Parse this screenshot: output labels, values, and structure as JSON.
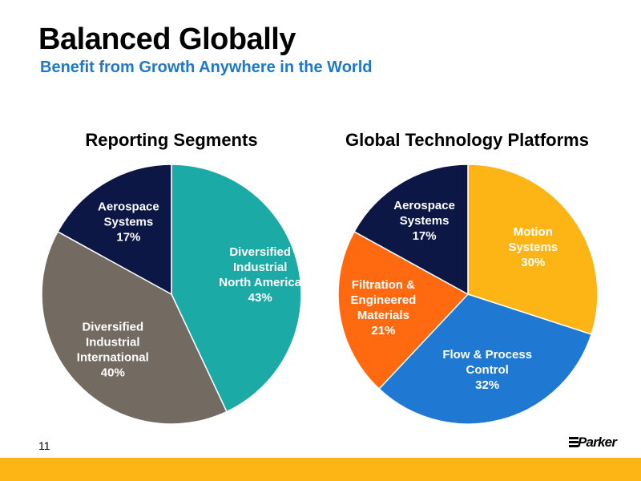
{
  "page": {
    "title": "Balanced Globally",
    "subtitle": "Benefit from Growth Anywhere in the World",
    "page_number": "11",
    "logo_text": "Parker"
  },
  "chart_data": [
    {
      "type": "pie",
      "title": "Reporting Segments",
      "slices": [
        {
          "label": [
            "Diversified",
            "Industrial",
            "North America"
          ],
          "value": 43,
          "value_label": "43%",
          "color": "#1BAAA6",
          "text_color": "#FFFFFF"
        },
        {
          "label": [
            "Diversified",
            "Industrial",
            "International"
          ],
          "value": 40,
          "value_label": "40%",
          "color": "#736A62",
          "text_color": "#FFFFFF"
        },
        {
          "label": [
            "Aerospace",
            "Systems"
          ],
          "value": 17,
          "value_label": "17%",
          "color": "#0C1746",
          "text_color": "#FFFFFF"
        }
      ]
    },
    {
      "type": "pie",
      "title": "Global Technology Platforms",
      "slices": [
        {
          "label": [
            "Motion",
            "Systems"
          ],
          "value": 30,
          "value_label": "30%",
          "color": "#FDB515",
          "text_color": "#FFFFFF"
        },
        {
          "label": [
            "Flow & Process",
            "Control"
          ],
          "value": 32,
          "value_label": "32%",
          "color": "#1F78D1",
          "text_color": "#FFFFFF"
        },
        {
          "label": [
            "Filtration &",
            "Engineered",
            "Materials"
          ],
          "value": 21,
          "value_label": "21%",
          "color": "#FF6A10",
          "text_color": "#FFFFFF"
        },
        {
          "label": [
            "Aerospace",
            "Systems"
          ],
          "value": 17,
          "value_label": "17%",
          "color": "#0C1746",
          "text_color": "#FFFFFF"
        }
      ]
    }
  ]
}
